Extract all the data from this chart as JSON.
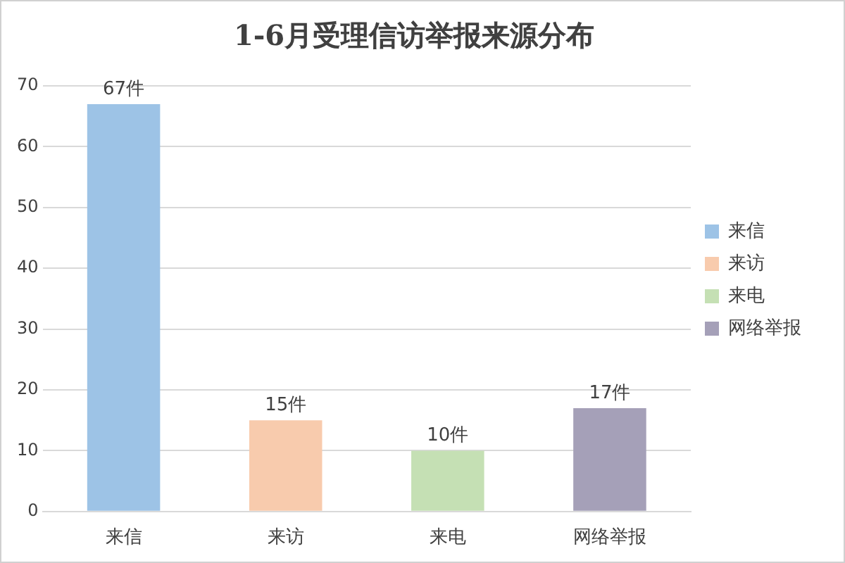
{
  "chart_data": {
    "type": "bar",
    "title": "1-6月受理信访举报来源分布",
    "categories": [
      "来信",
      "来访",
      "来电",
      "网络举报"
    ],
    "series": [
      {
        "name": "来信",
        "color": "#9dc3e6",
        "values": [
          67,
          null,
          null,
          null
        ],
        "value_labels": [
          "67件",
          null,
          null,
          null
        ]
      },
      {
        "name": "来访",
        "color": "#f8cbad",
        "values": [
          null,
          15,
          null,
          null
        ],
        "value_labels": [
          null,
          "15件",
          null,
          null
        ]
      },
      {
        "name": "来电",
        "color": "#c5e0b4",
        "values": [
          null,
          null,
          10,
          null
        ],
        "value_labels": [
          null,
          null,
          "10件",
          null
        ]
      },
      {
        "name": "网络举报",
        "color": "#a5a0b8",
        "values": [
          null,
          null,
          null,
          17
        ],
        "value_labels": [
          null,
          null,
          null,
          "17件"
        ]
      }
    ],
    "ylim": [
      0,
      70
    ],
    "yticks": [
      0,
      10,
      20,
      30,
      40,
      50,
      60,
      70
    ],
    "grid": "y",
    "legend": "right"
  }
}
